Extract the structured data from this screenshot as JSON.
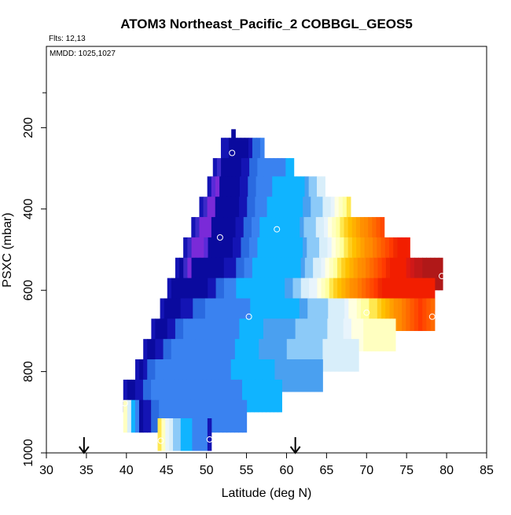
{
  "chart_data": {
    "type": "heatmap",
    "title": "ATOM3 Northeast_Pacific_2 COBBGL_GEOS5",
    "flights_text": "Flts: 12,13",
    "mmdd_text": "MMDD: 1025,1027",
    "xlabel": "Latitude (deg N)",
    "ylabel": "PSXC (mbar)",
    "xlim": [
      30,
      85
    ],
    "ylim": [
      1000,
      0
    ],
    "x_ticks": [
      30,
      35,
      40,
      45,
      50,
      55,
      60,
      65,
      70,
      75,
      80,
      85
    ],
    "y_ticks": [
      200,
      400,
      600,
      800,
      1000
    ],
    "grid": false,
    "legend": "none",
    "colorscale": [
      "#0a0a9e",
      "#1414b4",
      "#7a2ad8",
      "#2a6ae0",
      "#3a82f0",
      "#10b4ff",
      "#8ccaf8",
      "#d8eefa",
      "#ffffc0",
      "#ffd020",
      "#ff8a00",
      "#f21e00",
      "#b01818"
    ],
    "arrows_lat": [
      34.7,
      61.1
    ],
    "bands": [
      {
        "p": 225,
        "lat_start": 53.1,
        "lat_end": 53.6,
        "cols": [
          "#0a0a9e"
        ]
      },
      {
        "p": 265,
        "lat_start": 51.8,
        "lat_end": 57.2,
        "cols": [
          "#1414b4",
          "#1414b4",
          "#0a0a9e",
          "#0a0a9e",
          "#0a0a9e",
          "#0a0a9e",
          "#0a0a9e",
          "#1414b4",
          "#2a6ae0",
          "#2a6ae0",
          "#3a82f0"
        ]
      },
      {
        "p": 315,
        "lat_start": 50.8,
        "lat_end": 60.9,
        "cols": [
          "#1414b4",
          "#3a2ac8",
          "#0a0a9e",
          "#0a0a9e",
          "#0a0a9e",
          "#0a0a9e",
          "#0a0a9e",
          "#1414b4",
          "#1414b4",
          "#2a6ae0",
          "#2a6ae0",
          "#3a82f0",
          "#3a82f0",
          "#3a82f0",
          "#3a82f0",
          "#3a82f0",
          "#3a82f0",
          "#3a82f0",
          "#10b4ff",
          "#10b4ff"
        ]
      },
      {
        "p": 360,
        "lat_start": 50.1,
        "lat_end": 64.8,
        "cols": [
          "#1414b4",
          "#5a2ad8",
          "#7a2ad8",
          "#0a0a9e",
          "#0a0a9e",
          "#0a0a9e",
          "#0a0a9e",
          "#0a0a9e",
          "#1414b4",
          "#1414b4",
          "#2a6ae0",
          "#2a6ae0",
          "#3a82f0",
          "#3a82f0",
          "#3a82f0",
          "#3a82f0",
          "#10b4ff",
          "#10b4ff",
          "#10b4ff",
          "#10b4ff",
          "#10b4ff",
          "#10b4ff",
          "#10b4ff",
          "#10b4ff",
          "#4aa0f0",
          "#8ccaf8",
          "#8ccaf8",
          "#d8eefa",
          "#d8eefa"
        ]
      },
      {
        "p": 410,
        "lat_start": 49.1,
        "lat_end": 68.0,
        "cols": [
          "#1414b4",
          "#3a2ac8",
          "#7a2ad8",
          "#7a2ad8",
          "#0a0a9e",
          "#0a0a9e",
          "#0a0a9e",
          "#0a0a9e",
          "#0a0a9e",
          "#0a0a9e",
          "#1414b4",
          "#1414b4",
          "#2a6ae0",
          "#2a6ae0",
          "#3a82f0",
          "#3a82f0",
          "#3a82f0",
          "#10b4ff",
          "#10b4ff",
          "#10b4ff",
          "#10b4ff",
          "#10b4ff",
          "#10b4ff",
          "#10b4ff",
          "#10b4ff",
          "#10b4ff",
          "#4aa0f0",
          "#4aa0f0",
          "#8ccaf8",
          "#8ccaf8",
          "#8ccaf8",
          "#d8eefa",
          "#d8eefa",
          "#e8f4fc",
          "#ffffe0",
          "#ffffc0",
          "#ffffa0",
          "#ffe850"
        ]
      },
      {
        "p": 460,
        "lat_start": 48.1,
        "lat_end": 72.2,
        "cols": [
          "#1414b4",
          "#3a2ac8",
          "#7a2ad8",
          "#7a2ad8",
          "#7a2ad8",
          "#0a0a9e",
          "#0a0a9e",
          "#0a0a9e",
          "#0a0a9e",
          "#0a0a9e",
          "#0a0a9e",
          "#1414b4",
          "#1414b4",
          "#2a6ae0",
          "#2a6ae0",
          "#3a82f0",
          "#3a82f0",
          "#10b4ff",
          "#10b4ff",
          "#10b4ff",
          "#10b4ff",
          "#10b4ff",
          "#10b4ff",
          "#10b4ff",
          "#10b4ff",
          "#10b4ff",
          "#10b4ff",
          "#4aa0f0",
          "#8ccaf8",
          "#8ccaf8",
          "#8ccaf8",
          "#d8eefa",
          "#d8eefa",
          "#e8f4fc",
          "#ffffe0",
          "#ffffc0",
          "#ffffa0",
          "#ffe850",
          "#ffd020",
          "#ffc000",
          "#ffb000",
          "#ffa000",
          "#ff9000",
          "#ff8a00",
          "#ff7a00",
          "#ff6a00",
          "#ff5a00",
          "#ff4a00"
        ]
      },
      {
        "p": 510,
        "lat_start": 47.1,
        "lat_end": 75.4,
        "cols": [
          "#1414b4",
          "#3a2ac8",
          "#7a2ad8",
          "#7a2ad8",
          "#7a2ad8",
          "#5a2ad8",
          "#0a0a9e",
          "#0a0a9e",
          "#0a0a9e",
          "#0a0a9e",
          "#0a0a9e",
          "#0a0a9e",
          "#1414b4",
          "#1414b4",
          "#2a6ae0",
          "#2a6ae0",
          "#3a82f0",
          "#3a82f0",
          "#10b4ff",
          "#10b4ff",
          "#10b4ff",
          "#10b4ff",
          "#10b4ff",
          "#10b4ff",
          "#10b4ff",
          "#10b4ff",
          "#10b4ff",
          "#10b4ff",
          "#10b4ff",
          "#4aa0f0",
          "#8ccaf8",
          "#8ccaf8",
          "#8ccaf8",
          "#d8eefa",
          "#d8eefa",
          "#e8f4fc",
          "#ffffe0",
          "#ffffc0",
          "#ffffa0",
          "#ffe850",
          "#ffd020",
          "#ffc000",
          "#ffb000",
          "#ffa000",
          "#ff9000",
          "#ff8a00",
          "#ff7a00",
          "#ff6a00",
          "#ff5a00",
          "#ff4a00",
          "#ff3a00",
          "#f22a00",
          "#f21e00",
          "#f21e00",
          "#f21e00"
        ]
      },
      {
        "p": 560,
        "lat_start": 46.1,
        "lat_end": 79.5,
        "cols": [
          "#1414b4",
          "#0a0a9e",
          "#3a2ac8",
          "#7a2ad8",
          "#0a0a9e",
          "#0a0a9e",
          "#0a0a9e",
          "#0a0a9e",
          "#0a0a9e",
          "#0a0a9e",
          "#0a0a9e",
          "#0a0a9e",
          "#1414b4",
          "#1414b4",
          "#1414b4",
          "#2a6ae0",
          "#2a6ae0",
          "#3a82f0",
          "#3a82f0",
          "#10b4ff",
          "#10b4ff",
          "#10b4ff",
          "#10b4ff",
          "#10b4ff",
          "#10b4ff",
          "#10b4ff",
          "#10b4ff",
          "#10b4ff",
          "#10b4ff",
          "#10b4ff",
          "#10b4ff",
          "#4aa0f0",
          "#8ccaf8",
          "#8ccaf8",
          "#d8eefa",
          "#d8eefa",
          "#e8f4fc",
          "#ffffe0",
          "#ffffc0",
          "#ffffa0",
          "#ffe850",
          "#ffd020",
          "#ffc000",
          "#ffb000",
          "#ffa000",
          "#ff9000",
          "#ff8a00",
          "#ff7a00",
          "#ff6a00",
          "#ff5a00",
          "#ff4a00",
          "#ff3a00",
          "#f22a00",
          "#f21e00",
          "#f21e00",
          "#f21e00",
          "#f21e00",
          "#e01a10",
          "#d01818",
          "#c01818",
          "#c01818",
          "#b01818",
          "#b01818",
          "#b01818",
          "#b01818",
          "#b01818"
        ]
      },
      {
        "p": 610,
        "lat_start": 45.1,
        "lat_end": 78.5,
        "cols": [
          "#1414b4",
          "#0a0a9e",
          "#0a0a9e",
          "#0a0a9e",
          "#0a0a9e",
          "#0a0a9e",
          "#0a0a9e",
          "#0a0a9e",
          "#0a0a9e",
          "#0a0a9e",
          "#1414b4",
          "#1414b4",
          "#2a6ae0",
          "#2a6ae0",
          "#3a82f0",
          "#3a82f0",
          "#3a82f0",
          "#10b4ff",
          "#10b4ff",
          "#10b4ff",
          "#10b4ff",
          "#10b4ff",
          "#10b4ff",
          "#10b4ff",
          "#10b4ff",
          "#10b4ff",
          "#10b4ff",
          "#10b4ff",
          "#10b4ff",
          "#4aa0f0",
          "#4aa0f0",
          "#8ccaf8",
          "#8ccaf8",
          "#d8eefa",
          "#d8eefa",
          "#e8f4fc",
          "#e8f4fc",
          "#ffffe0",
          "#ffffc0",
          "#ffffa0",
          "#ffe850",
          "#ffd020",
          "#ffc000",
          "#ffb000",
          "#ffa000",
          "#ff9000",
          "#ff8a00",
          "#ff7a00",
          "#ff6a00",
          "#ff5a00",
          "#ff4a00",
          "#ff3a00",
          "#f22a00",
          "#f21e00",
          "#f21e00",
          "#f21e00",
          "#f21e00",
          "#f21e00",
          "#f21e00",
          "#f21e00",
          "#f21e00",
          "#f21e00",
          "#f21e00",
          "#f21e00",
          "#f21e00",
          "#f21e00"
        ]
      },
      {
        "p": 660,
        "lat_start": 44.2,
        "lat_end": 78.5,
        "cols": [
          "#1414b4",
          "#0a0a9e",
          "#0a0a9e",
          "#0a0a9e",
          "#0a0a9e",
          "#1414b4",
          "#1414b4",
          "#1414b4",
          "#2a6ae0",
          "#2a6ae0",
          "#2a6ae0",
          "#3a82f0",
          "#3a82f0",
          "#3a82f0",
          "#3a82f0",
          "#3a82f0",
          "#3a82f0",
          "#3a82f0",
          "#3a82f0",
          "#3a82f0",
          "#3a82f0",
          "#3a82f0",
          "#10b4ff",
          "#10b4ff",
          "#10b4ff",
          "#10b4ff",
          "#10b4ff",
          "#10b4ff",
          "#10b4ff",
          "#10b4ff",
          "#10b4ff",
          "#10b4ff",
          "#10b4ff",
          "#10b4ff",
          "#4aa0f0",
          "#4aa0f0",
          "#8ccaf8",
          "#8ccaf8",
          "#8ccaf8",
          "#8ccaf8",
          "#8ccaf8",
          "#d8eefa",
          "#d8eefa",
          "#d8eefa",
          "#d8eefa",
          "#e8f4fc",
          "#ffffe0",
          "#ffffe0",
          "#ffffc0",
          "#ffffa0",
          "#ffffa0",
          "#ffe850",
          "#ffe850",
          "#ffd020",
          "#ffc000",
          "#ffb000",
          "#ffa000",
          "#ff9000",
          "#ff8a00",
          "#ff7a00",
          "#ff6a00",
          "#ff5a00",
          "#ff4a00",
          "#ff3a00",
          "#ff4a00",
          "#ff5a00",
          "#ff6a00"
        ]
      },
      {
        "p": 710,
        "lat_start": 43.1,
        "lat_end": 73.6,
        "cols": [
          "#1414b4",
          "#0a0a9e",
          "#0a0a9e",
          "#0a0a9e",
          "#1414b4",
          "#1414b4",
          "#2a6ae0",
          "#2a6ae0",
          "#3a82f0",
          "#3a82f0",
          "#3a82f0",
          "#3a82f0",
          "#3a82f0",
          "#3a82f0",
          "#3a82f0",
          "#3a82f0",
          "#3a82f0",
          "#3a82f0",
          "#3a82f0",
          "#3a82f0",
          "#3a82f0",
          "#3a82f0",
          "#10b4ff",
          "#10b4ff",
          "#10b4ff",
          "#10b4ff",
          "#10b4ff",
          "#10b4ff",
          "#4aa0f0",
          "#4aa0f0",
          "#4aa0f0",
          "#4aa0f0",
          "#4aa0f0",
          "#4aa0f0",
          "#4aa0f0",
          "#4aa0f0",
          "#8ccaf8",
          "#8ccaf8",
          "#8ccaf8",
          "#8ccaf8",
          "#8ccaf8",
          "#8ccaf8",
          "#8ccaf8",
          "#8ccaf8",
          "#d8eefa",
          "#d8eefa",
          "#d8eefa",
          "#d8eefa",
          "#e8f4fc",
          "#e8f4fc",
          "#ffffe0",
          "#ffffe0",
          "#ffffe0",
          "#ffffc0",
          "#ffffc0",
          "#ffffc0",
          "#ffffc0",
          "#ffffc0",
          "#ffffc0",
          "#ffffc0",
          "#ffffc0"
        ]
      },
      {
        "p": 760,
        "lat_start": 42.1,
        "lat_end": 69.0,
        "cols": [
          "#1414b4",
          "#0a0a9e",
          "#0a0a9e",
          "#1414b4",
          "#1414b4",
          "#2a6ae0",
          "#2a6ae0",
          "#3a82f0",
          "#3a82f0",
          "#3a82f0",
          "#3a82f0",
          "#3a82f0",
          "#3a82f0",
          "#3a82f0",
          "#3a82f0",
          "#3a82f0",
          "#3a82f0",
          "#3a82f0",
          "#3a82f0",
          "#3a82f0",
          "#3a82f0",
          "#3a82f0",
          "#3a82f0",
          "#10b4ff",
          "#10b4ff",
          "#10b4ff",
          "#10b4ff",
          "#10b4ff",
          "#10b4ff",
          "#4aa0f0",
          "#4aa0f0",
          "#4aa0f0",
          "#4aa0f0",
          "#4aa0f0",
          "#4aa0f0",
          "#4aa0f0",
          "#8ccaf8",
          "#8ccaf8",
          "#8ccaf8",
          "#8ccaf8",
          "#8ccaf8",
          "#8ccaf8",
          "#8ccaf8",
          "#8ccaf8",
          "#8ccaf8",
          "#d8eefa",
          "#d8eefa",
          "#d8eefa",
          "#d8eefa",
          "#d8eefa",
          "#d8eefa",
          "#d8eefa",
          "#d8eefa",
          "#d8eefa"
        ]
      },
      {
        "p": 810,
        "lat_start": 41.1,
        "lat_end": 64.5,
        "cols": [
          "#1414b4",
          "#0a0a9e",
          "#1414b4",
          "#2a6ae0",
          "#2a6ae0",
          "#3a82f0",
          "#3a82f0",
          "#3a82f0",
          "#3a82f0",
          "#3a82f0",
          "#3a82f0",
          "#3a82f0",
          "#3a82f0",
          "#3a82f0",
          "#3a82f0",
          "#3a82f0",
          "#3a82f0",
          "#3a82f0",
          "#3a82f0",
          "#3a82f0",
          "#3a82f0",
          "#3a82f0",
          "#3a82f0",
          "#3a82f0",
          "#10b4ff",
          "#10b4ff",
          "#10b4ff",
          "#10b4ff",
          "#10b4ff",
          "#10b4ff",
          "#10b4ff",
          "#10b4ff",
          "#10b4ff",
          "#10b4ff",
          "#10b4ff",
          "#4aa0f0",
          "#4aa0f0",
          "#4aa0f0",
          "#4aa0f0",
          "#4aa0f0",
          "#4aa0f0",
          "#4aa0f0",
          "#4aa0f0",
          "#4aa0f0",
          "#4aa0f0",
          "#4aa0f0",
          "#4aa0f0"
        ]
      },
      {
        "p": 860,
        "lat_start": 39.6,
        "lat_end": 59.4,
        "cols": [
          "#1414b4",
          "#0a0a9e",
          "#0a0a9e",
          "#1414b4",
          "#1414b4",
          "#2a6ae0",
          "#2a6ae0",
          "#3a82f0",
          "#3a82f0",
          "#3a82f0",
          "#3a82f0",
          "#3a82f0",
          "#3a82f0",
          "#3a82f0",
          "#3a82f0",
          "#3a82f0",
          "#3a82f0",
          "#3a82f0",
          "#3a82f0",
          "#3a82f0",
          "#3a82f0",
          "#3a82f0",
          "#3a82f0",
          "#3a82f0",
          "#3a82f0",
          "#3a82f0",
          "#3a82f0",
          "#3a82f0",
          "#3a82f0",
          "#3a82f0",
          "#10b4ff",
          "#10b4ff",
          "#10b4ff",
          "#10b4ff",
          "#10b4ff",
          "#10b4ff",
          "#10b4ff",
          "#10b4ff",
          "#10b4ff",
          "#10b4ff"
        ]
      },
      {
        "p": 910,
        "lat_start": 39.6,
        "lat_end": 55.0,
        "cols": [
          "#ffffc0",
          "#d8eefa",
          "#10b4ff",
          "#3a82f0",
          "#0a0a9e",
          "#1414b4",
          "#1414b4",
          "#2a6ae0",
          "#2a6ae0",
          "#3a82f0",
          "#3a82f0",
          "#3a82f0",
          "#3a82f0",
          "#3a82f0",
          "#3a82f0",
          "#3a82f0",
          "#3a82f0",
          "#3a82f0",
          "#3a82f0",
          "#3a82f0",
          "#3a82f0",
          "#3a82f0",
          "#3a82f0",
          "#3a82f0",
          "#3a82f0",
          "#3a82f0",
          "#3a82f0",
          "#3a82f0",
          "#3a82f0",
          "#3a82f0",
          "#3a82f0"
        ]
      },
      {
        "p": 955,
        "lat_start": 43.9,
        "lat_end": 50.6,
        "cols": [
          "#ffe850",
          "#ffffc0",
          "#e8f4fc",
          "#d8eefa",
          "#8ccaf8",
          "#8ccaf8",
          "#10b4ff",
          "#10b4ff",
          "#10b4ff",
          "#3a82f0",
          "#3a82f0",
          "#3a82f0",
          "#3a82f0",
          "#1414b4"
        ]
      }
    ],
    "points": [
      {
        "lat": 53.2,
        "p": 262
      },
      {
        "lat": 58.8,
        "p": 450
      },
      {
        "lat": 51.7,
        "p": 470
      },
      {
        "lat": 79.4,
        "p": 565
      },
      {
        "lat": 55.3,
        "p": 665
      },
      {
        "lat": 70.0,
        "p": 655
      },
      {
        "lat": 78.2,
        "p": 665
      },
      {
        "lat": 39.8,
        "p": 878
      },
      {
        "lat": 50.4,
        "p": 967
      },
      {
        "lat": 44.3,
        "p": 970
      }
    ]
  }
}
